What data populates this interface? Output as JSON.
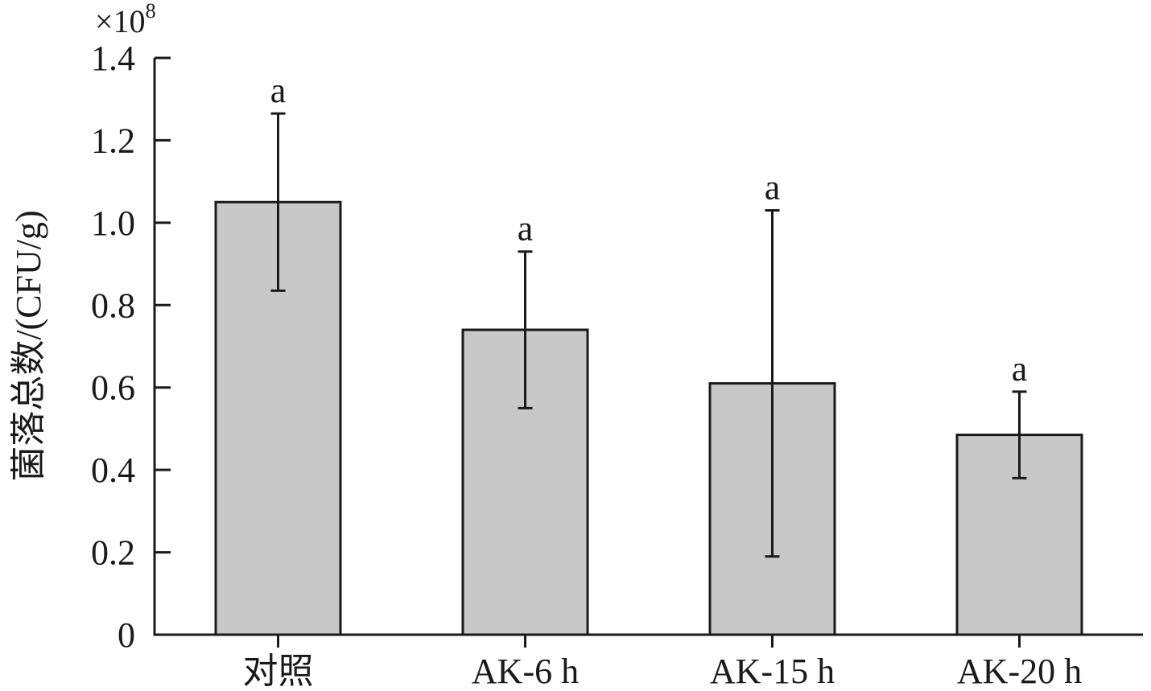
{
  "chart_data": {
    "type": "bar",
    "categories": [
      "对照",
      "AK-6 h",
      "AK-15 h",
      "AK-20 h"
    ],
    "values": [
      1.05,
      0.74,
      0.61,
      0.485
    ],
    "error": [
      0.215,
      0.19,
      0.42,
      0.105
    ],
    "significance": [
      "a",
      "a",
      "a",
      "a"
    ],
    "ylabel": "菌落总数/(CFU/g)",
    "multiplier": "×10",
    "multiplier_exp": "8",
    "ylim": [
      0,
      1.4
    ],
    "yticks": [
      0,
      0.2,
      0.4,
      0.6,
      0.8,
      1.0,
      1.2,
      1.4
    ],
    "ytick_labels": [
      "0",
      "0.2",
      "0.4",
      "0.6",
      "0.8",
      "1.0",
      "1.2",
      "1.4"
    ],
    "bar_color": "#c8c8c8",
    "edge_color": "#1a1a1a",
    "grid": false
  }
}
